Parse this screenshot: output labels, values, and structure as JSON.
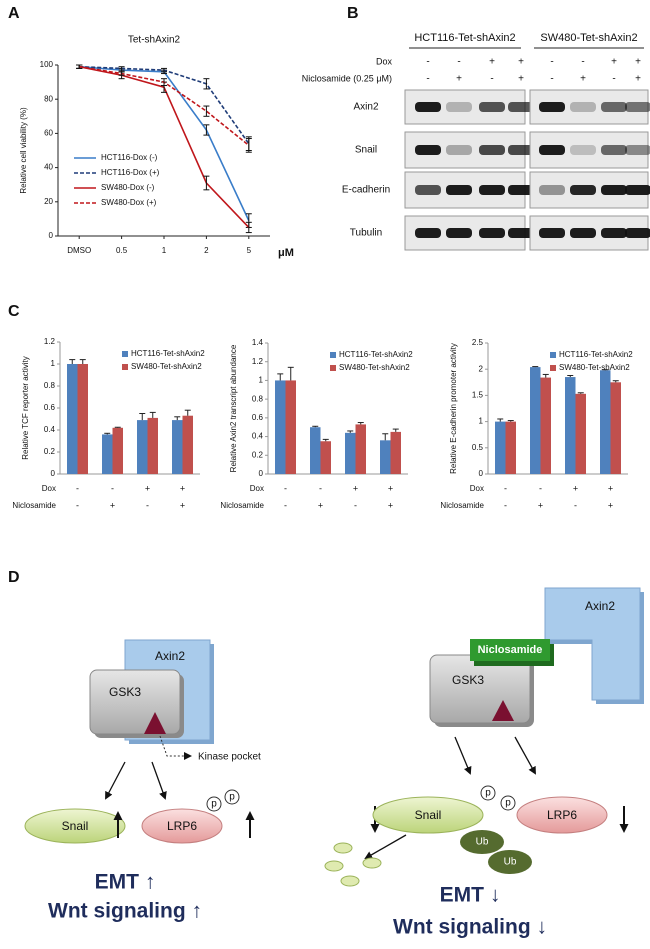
{
  "panel_labels": [
    "A",
    "B",
    "C",
    "D"
  ],
  "chart_data": [
    {
      "type": "line",
      "title": "Tet-shAxin2",
      "y_label": "Relative cell viability (%)",
      "x_label": "μM",
      "categories": [
        "DMSO",
        "0.5",
        "1",
        "2",
        "5"
      ],
      "ylim": [
        0,
        100
      ],
      "yticks": [
        0,
        20,
        40,
        60,
        80,
        100
      ],
      "legend": "lower left",
      "series": [
        {
          "name": "HCT116-Dox (-)",
          "color": "#3a7dc9",
          "dash": false,
          "values": [
            99,
            97,
            96,
            62,
            9
          ],
          "errors": [
            1,
            1,
            1,
            3,
            4
          ]
        },
        {
          "name": "HCT116-Dox (+)",
          "color": "#1f3c78",
          "dash": true,
          "values": [
            99,
            98,
            97,
            89,
            54
          ],
          "errors": [
            1,
            1,
            1,
            3,
            4
          ]
        },
        {
          "name": "SW480-Dox (-)",
          "color": "#c0171c",
          "dash": false,
          "values": [
            99,
            94,
            87,
            31,
            5
          ],
          "errors": [
            1,
            2,
            3,
            4,
            3
          ]
        },
        {
          "name": "SW480-Dox (+)",
          "color": "#c0171c",
          "dash": true,
          "values": [
            99,
            95,
            90,
            73,
            53
          ],
          "errors": [
            1,
            1,
            2,
            3,
            4
          ]
        }
      ]
    },
    {
      "type": "bar",
      "y_label": "Relative TCF reporter activity",
      "categories": [
        null,
        null,
        null,
        null
      ],
      "x_rows": [
        {
          "label": "Dox",
          "values": [
            "-",
            "-",
            "+",
            "+"
          ]
        },
        {
          "label": "Niclosamide",
          "values": [
            "-",
            "+",
            "-",
            "+"
          ]
        }
      ],
      "ylim": [
        0,
        1.2
      ],
      "yticks": [
        0,
        0.2,
        0.4,
        0.6,
        0.8,
        1,
        1.2
      ],
      "legend": "upper right",
      "series": [
        {
          "name": "HCT116-Tet-shAxin2",
          "color": "#4f81bd",
          "values": [
            1.0,
            0.36,
            0.49,
            0.49
          ],
          "errors": [
            0.04,
            0.01,
            0.06,
            0.03
          ]
        },
        {
          "name": "SW480-Tet-shAxin2",
          "color": "#c0504d",
          "values": [
            1.0,
            0.42,
            0.51,
            0.53
          ],
          "errors": [
            0.04,
            0.005,
            0.05,
            0.05
          ]
        }
      ]
    },
    {
      "type": "bar",
      "y_label": "Relative Axin2 transcript abundance",
      "categories": [
        null,
        null,
        null,
        null
      ],
      "x_rows": [
        {
          "label": "Dox",
          "values": [
            "-",
            "-",
            "+",
            "+"
          ]
        },
        {
          "label": "Niclosamide",
          "values": [
            "-",
            "+",
            "-",
            "+"
          ]
        }
      ],
      "ylim": [
        0,
        1.4
      ],
      "yticks": [
        0,
        0.2,
        0.4,
        0.6,
        0.8,
        1,
        1.2,
        1.4
      ],
      "legend": "upper right",
      "series": [
        {
          "name": "HCT116-Tet-shAxin2",
          "color": "#4f81bd",
          "values": [
            1.0,
            0.5,
            0.44,
            0.36
          ],
          "errors": [
            0.07,
            0.01,
            0.02,
            0.07
          ]
        },
        {
          "name": "SW480-Tet-shAxin2",
          "color": "#c0504d",
          "values": [
            1.0,
            0.35,
            0.53,
            0.45
          ],
          "errors": [
            0.14,
            0.02,
            0.02,
            0.03
          ]
        }
      ]
    },
    {
      "type": "bar",
      "y_label": "Relative E-cadherin promoter activity",
      "categories": [
        null,
        null,
        null,
        null
      ],
      "x_rows": [
        {
          "label": "Dox",
          "values": [
            "-",
            "-",
            "+",
            "+"
          ]
        },
        {
          "label": "Niclosamide",
          "values": [
            "-",
            "+",
            "-",
            "+"
          ]
        }
      ],
      "ylim": [
        0,
        2.5
      ],
      "yticks": [
        0,
        0.5,
        1,
        1.5,
        2,
        2.5
      ],
      "legend": "upper right",
      "series": [
        {
          "name": "HCT116-Tet-shAxin2",
          "color": "#4f81bd",
          "values": [
            1.0,
            2.04,
            1.85,
            1.98
          ],
          "errors": [
            0.05,
            0.01,
            0.03,
            0.01
          ]
        },
        {
          "name": "SW480-Tet-shAxin2",
          "color": "#c0504d",
          "values": [
            1.0,
            1.84,
            1.53,
            1.75
          ],
          "errors": [
            0.02,
            0.06,
            0.02,
            0.03
          ]
        }
      ]
    }
  ],
  "blot": {
    "cell_lines": [
      "HCT116-Tet-shAxin2",
      "SW480-Tet-shAxin2"
    ],
    "conditions": [
      {
        "label": "Dox",
        "values": [
          "-",
          "-",
          "+",
          "+"
        ]
      },
      {
        "label": "Niclosamide (0.25 μM)",
        "values": [
          "-",
          "+",
          "-",
          "+"
        ]
      }
    ],
    "proteins": [
      "Axin2",
      "Snail",
      "E-cadherin",
      "Tubulin"
    ]
  },
  "diagram": {
    "left": {
      "axin2": "Axin2",
      "gsk3": "GSK3",
      "kinase_pocket": "Kinase pocket",
      "snail": "Snail",
      "lrp6": "LRP6",
      "phospho": [
        "p",
        "p"
      ],
      "emt": "EMT ↑",
      "wnt": "Wnt signaling ↑"
    },
    "right": {
      "axin2": "Axin2",
      "niclosamide": "Niclosamide",
      "gsk3": "GSK3",
      "snail": "Snail",
      "phospho": [
        "p",
        "p"
      ],
      "ub": [
        "Ub",
        "Ub"
      ],
      "lrp6": "LRP6",
      "emt": "EMT ↓",
      "wnt": "Wnt signaling ↓"
    }
  }
}
